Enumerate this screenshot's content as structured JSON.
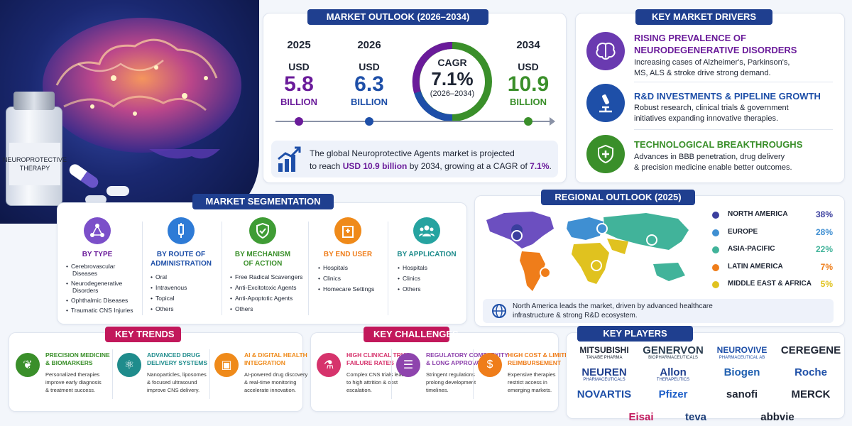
{
  "hero": {
    "vial_label_line1": "NEUROPROTECTIVE",
    "vial_label_line2": "THERAPY"
  },
  "market_outlook": {
    "title": "MARKET OUTLOOK (2026–2034)",
    "y2025": {
      "year": "2025",
      "usd": "USD",
      "value": "5.8",
      "unit": "BILLION"
    },
    "y2026": {
      "year": "2026",
      "usd": "USD",
      "value": "6.3",
      "unit": "BILLION"
    },
    "cagr": {
      "label": "CAGR",
      "value": "7.1%",
      "period": "(2026–2034)"
    },
    "y2034": {
      "year": "2034",
      "usd": "USD",
      "value": "10.9",
      "unit": "BILLION"
    },
    "summary_1": "The global Neuroprotective Agents market is projected",
    "summary_2a": "to reach ",
    "summary_2b": "USD 10.9 billion",
    "summary_2c": " by 2034, growing at a CAGR of ",
    "summary_2d": "7.1%",
    "summary_2e": ".",
    "colors": {
      "purple": "#6a1b9a",
      "blue": "#1e4fa8",
      "green": "#3a8f2a"
    }
  },
  "drivers": {
    "title": "KEY MARKET DRIVERS",
    "items": [
      {
        "title_1": "RISING PREVALENCE OF",
        "title_2": "NEURODEGENERATIVE DISORDERS",
        "text_1": "Increasing cases of Alzheimer's, Parkinson's,",
        "text_2": "MS, ALS & stroke drive strong demand.",
        "icon": "brain-icon"
      },
      {
        "title_1": "R&D INVESTMENTS & PIPELINE GROWTH",
        "text_1": "Robust research, clinical trials & government",
        "text_2": "initiatives expanding innovative therapies.",
        "icon": "microscope-icon"
      },
      {
        "title_1": "TECHNOLOGICAL BREAKTHROUGHS",
        "text_1": "Advances in BBB penetration, drug delivery",
        "text_2": "& precision medicine enable better outcomes.",
        "icon": "shield-plus-icon"
      }
    ]
  },
  "segmentation": {
    "title": "MARKET SEGMENTATION",
    "cols": [
      {
        "title_1": "BY TYPE",
        "title_2": "",
        "items": [
          "Cerebrovascular",
          "Diseases",
          "Neurodegenerative",
          "Disorders",
          "Ophthalmic Diseases",
          "Traumatic CNS Injuries"
        ],
        "color": "#7b4fc9",
        "icon": "network-icon"
      },
      {
        "title_1": "BY ROUTE OF",
        "title_2": "ADMINISTRATION",
        "items": [
          "Oral",
          "Intravenous",
          "Topical",
          "Others"
        ],
        "color": "#2e7bd6",
        "icon": "syringe-icon"
      },
      {
        "title_1": "BY MECHANISM",
        "title_2": "OF ACTION",
        "items": [
          "Free Radical Scavengers",
          "Anti-Excitotoxic Agents",
          "Anti-Apoptotic Agents",
          "Others"
        ],
        "color": "#3f9c35",
        "icon": "shield-check-icon"
      },
      {
        "title_1": "BY END USER",
        "title_2": "",
        "items": [
          "Hospitals",
          "Clinics",
          "Homecare Settings"
        ],
        "color": "#ef8a1a",
        "icon": "hospital-icon"
      },
      {
        "title_1": "BY APPLICATION",
        "title_2": "",
        "items": [
          "Hospitals",
          "Clinics",
          "Others"
        ],
        "color": "#26a3a0",
        "icon": "people-icon"
      }
    ]
  },
  "regional": {
    "title": "REGIONAL OUTLOOK (2025)",
    "rows": [
      {
        "name": "NORTH AMERICA",
        "share": "38%",
        "share_value": 38,
        "color": "#3b3f9e"
      },
      {
        "name": "EUROPE",
        "share": "28%",
        "share_value": 28,
        "color": "#3f8fd2"
      },
      {
        "name": "ASIA-PACIFIC",
        "share": "22%",
        "share_value": 22,
        "color": "#41b39a"
      },
      {
        "name": "LATIN AMERICA",
        "share": "7%",
        "share_value": 7,
        "color": "#ef7d1a"
      },
      {
        "name": "MIDDLE EAST & AFRICA",
        "share": "5%",
        "share_value": 5,
        "color": "#e0c21f"
      }
    ],
    "note_1": "North America leads the market, driven by advanced healthcare",
    "note_2": "infrastructure & strong R&D ecosystem."
  },
  "trends": {
    "title": "KEY TRENDS",
    "items": [
      {
        "title_1": "PRECISION MEDICINE",
        "title_2": "& BIOMARKERS",
        "text": [
          "Personalized therapies",
          "improve early diagnosis",
          "& treatment success."
        ],
        "color": "#3a8f2a",
        "icon": "leaf-icon"
      },
      {
        "title_1": "ADVANCED DRUG",
        "title_2": "DELIVERY SYSTEMS",
        "text": [
          "Nanoparticles, liposomes",
          "& focused ultrasound",
          "improve CNS delivery."
        ],
        "color": "#1f8c8c",
        "icon": "atom-icon"
      },
      {
        "title_1": "AI & DIGITAL HEALTH",
        "title_2": "INTEGRATION",
        "text": [
          "AI-powered drug discovery",
          "& real-time monitoring",
          "accelerate innovation."
        ],
        "color": "#ef8a1a",
        "icon": "chip-icon"
      }
    ]
  },
  "challenges": {
    "title": "KEY CHALLENGES",
    "items": [
      {
        "title_1": "HIGH CLINICAL TRIAL",
        "title_2": "FAILURE RATES",
        "text": [
          "Complex CNS trials lead",
          "to high attrition & cost",
          "escalation."
        ],
        "color": "#d6336c",
        "icon": "flask-icon"
      },
      {
        "title_1": "REGULATORY COMPLEXITY",
        "title_2": "& LONG APPROVAL",
        "text": [
          "Stringent regulations",
          "prolong development",
          "timelines."
        ],
        "color": "#8e44ad",
        "icon": "clipboard-icon"
      },
      {
        "title_1": "HIGH COST & LIMITED",
        "title_2": "REIMBURSEMENT",
        "text": [
          "Expensive therapies",
          "restrict access in",
          "emerging markets."
        ],
        "color": "#ef7d1a",
        "icon": "money-icon"
      }
    ]
  },
  "players": {
    "title": "KEY PLAYERS",
    "logos": [
      {
        "name": "MITSUBISHI",
        "sub": "TANABE PHARMA",
        "color": "#1d2433"
      },
      {
        "name": "GENERVON",
        "sub": "BIOPHARMACEUTICALS",
        "color": "#2c3e50"
      },
      {
        "name": "NEUROVIVE",
        "sub": "PHARMACEUTICAL AB",
        "color": "#1e4fa8"
      },
      {
        "name": "CEREGENE",
        "sub": "",
        "color": "#1d2433"
      },
      {
        "name": "NEUREN",
        "sub": "PHARMACEUTICALS",
        "color": "#1f3f8f"
      },
      {
        "name": "Allon",
        "sub": "THERAPEUTICS",
        "color": "#1f3f8f"
      },
      {
        "name": "Biogen",
        "sub": "",
        "color": "#1f5fb0"
      },
      {
        "name": "Roche",
        "sub": "",
        "color": "#1e4fa8"
      },
      {
        "name": "NOVARTIS",
        "sub": "",
        "color": "#1e4fa8"
      },
      {
        "name": "Pfizer",
        "sub": "",
        "color": "#1e5fc8"
      },
      {
        "name": "sanofi",
        "sub": "",
        "color": "#1d2433"
      },
      {
        "name": "MERCK",
        "sub": "",
        "color": "#1d2433"
      },
      {
        "name": "Eisai",
        "sub": "",
        "color": "#c2185b"
      },
      {
        "name": "teva",
        "sub": "",
        "color": "#1e3f7a"
      },
      {
        "name": "abbvie",
        "sub": "",
        "color": "#1d2433"
      }
    ]
  }
}
